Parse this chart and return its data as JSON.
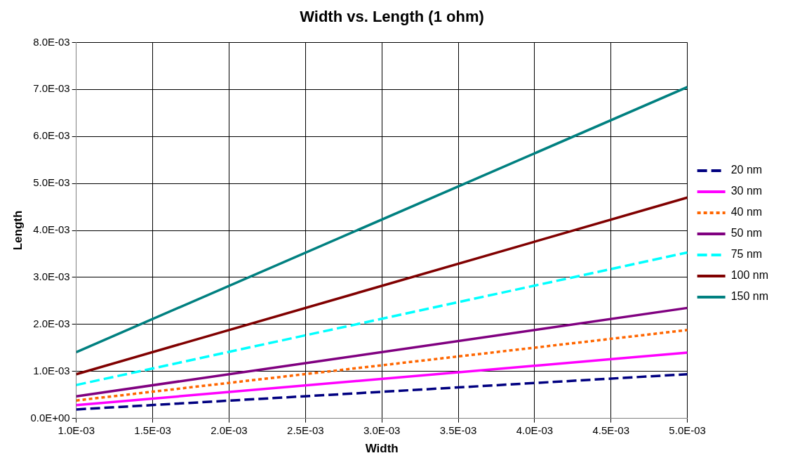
{
  "chart_data": {
    "type": "line",
    "title": "Width vs. Length (1 ohm)",
    "xlabel": "Width",
    "ylabel": "Length",
    "x": [
      0.001,
      0.005
    ],
    "series": [
      {
        "name": "20 nm",
        "color": "#000080",
        "line_style": "dashed",
        "values": [
          0.00019,
          0.00094
        ]
      },
      {
        "name": "30 nm",
        "color": "#ff00ff",
        "line_style": "solid",
        "values": [
          0.00028,
          0.0014
        ]
      },
      {
        "name": "40 nm",
        "color": "#ff6600",
        "line_style": "dotted",
        "values": [
          0.00038,
          0.00188
        ]
      },
      {
        "name": "50 nm",
        "color": "#800080",
        "line_style": "solid",
        "values": [
          0.00047,
          0.00235
        ]
      },
      {
        "name": "75 nm",
        "color": "#00ffff",
        "line_style": "dashed",
        "values": [
          0.00071,
          0.00353
        ]
      },
      {
        "name": "100 nm",
        "color": "#800000",
        "line_style": "solid",
        "values": [
          0.00094,
          0.0047
        ]
      },
      {
        "name": "150 nm",
        "color": "#008080",
        "line_style": "solid",
        "values": [
          0.00141,
          0.00705
        ]
      }
    ],
    "xlim": [
      0.001,
      0.005
    ],
    "xticks": [
      {
        "value": 0.001,
        "label": "1.0E-03"
      },
      {
        "value": 0.0015,
        "label": "1.5E-03"
      },
      {
        "value": 0.002,
        "label": "2.0E-03"
      },
      {
        "value": 0.0025,
        "label": "2.5E-03"
      },
      {
        "value": 0.003,
        "label": "3.0E-03"
      },
      {
        "value": 0.0035,
        "label": "3.5E-03"
      },
      {
        "value": 0.004,
        "label": "4.0E-03"
      },
      {
        "value": 0.0045,
        "label": "4.5E-03"
      },
      {
        "value": 0.005,
        "label": "5.0E-03"
      }
    ],
    "ylim": [
      0,
      0.008
    ],
    "yticks": [
      {
        "value": 0,
        "label": "0.0E+00"
      },
      {
        "value": 0.001,
        "label": "1.0E-03"
      },
      {
        "value": 0.002,
        "label": "2.0E-03"
      },
      {
        "value": 0.003,
        "label": "3.0E-03"
      },
      {
        "value": 0.004,
        "label": "4.0E-03"
      },
      {
        "value": 0.005,
        "label": "5.0E-03"
      },
      {
        "value": 0.006,
        "label": "6.0E-03"
      },
      {
        "value": 0.007,
        "label": "7.0E-03"
      },
      {
        "value": 0.008,
        "label": "8.0E-03"
      }
    ],
    "grid": true,
    "legend": "right",
    "marker": "none"
  }
}
